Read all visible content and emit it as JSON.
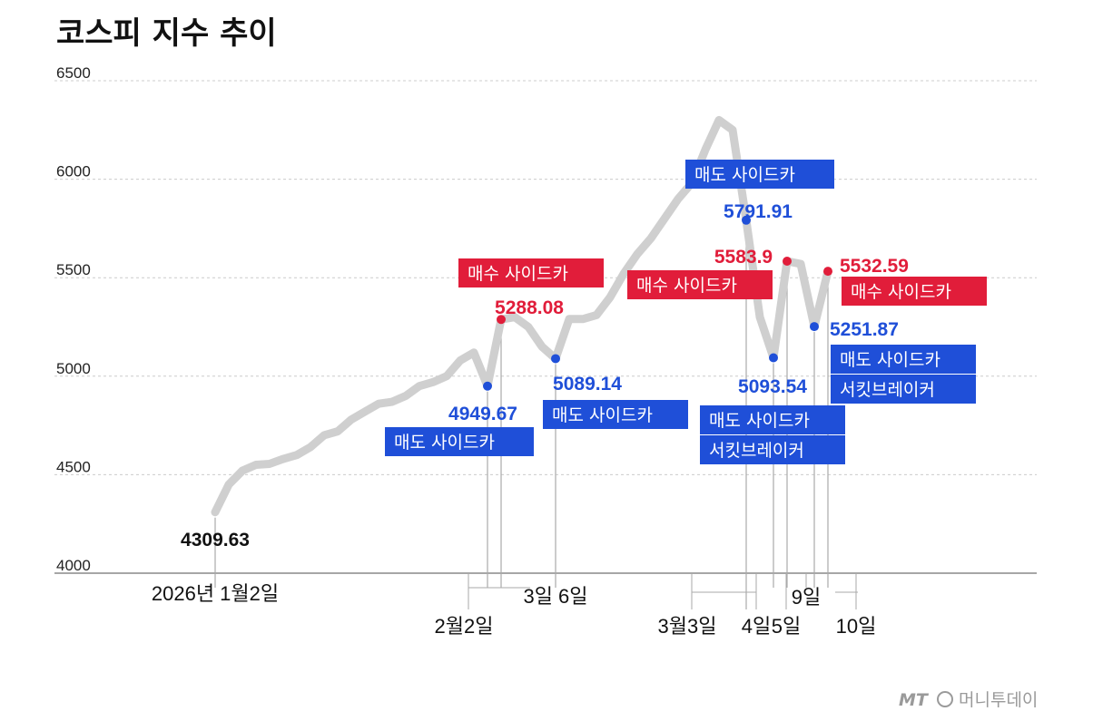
{
  "title": "코스피 지수 추이",
  "watermark": "머니투데이",
  "watermark_logo": "MT",
  "colors": {
    "line": "#cfcfcf",
    "sell": "#1f4fd8",
    "buy": "#e11d3a",
    "grid": "#cccccc",
    "axis": "#888888",
    "guide": "#aaaaaa"
  },
  "chart_data": {
    "type": "line",
    "title": "코스피 지수 추이",
    "xlabel": "",
    "ylabel": "",
    "ylim": [
      4000,
      6500
    ],
    "yticks": [
      4000,
      4500,
      5000,
      5500,
      6000,
      6500
    ],
    "xlim": [
      0,
      68
    ],
    "grid": true,
    "x_labels": [
      {
        "text": "2026년 1월2일",
        "x": 0
      },
      {
        "text": "2월2일",
        "x": 20
      },
      {
        "text": "3일 6일",
        "x": 25
      },
      {
        "text": "3월3일",
        "x": 39
      },
      {
        "text": "4일",
        "x": 41
      },
      {
        "text": "5일",
        "x": 42
      },
      {
        "text": "9일",
        "x": 44
      },
      {
        "text": "10일",
        "x": 45
      }
    ],
    "series": [
      {
        "values": [
          [
            0,
            4309.63
          ],
          [
            1,
            4450
          ],
          [
            2,
            4520
          ],
          [
            3,
            4550
          ],
          [
            4,
            4555
          ],
          [
            5,
            4580
          ],
          [
            6,
            4600
          ],
          [
            7,
            4640
          ],
          [
            8,
            4700
          ],
          [
            9,
            4720
          ],
          [
            10,
            4780
          ],
          [
            11,
            4820
          ],
          [
            12,
            4860
          ],
          [
            13,
            4870
          ],
          [
            14,
            4900
          ],
          [
            15,
            4950
          ],
          [
            16,
            4970
          ],
          [
            17,
            5000
          ],
          [
            18,
            5080
          ],
          [
            19,
            5120
          ],
          [
            20,
            4949.67
          ],
          [
            21,
            5288.08
          ],
          [
            22,
            5300
          ],
          [
            23,
            5250
          ],
          [
            24,
            5150
          ],
          [
            25,
            5089.14
          ],
          [
            26,
            5290
          ],
          [
            27,
            5290
          ],
          [
            28,
            5310
          ],
          [
            29,
            5400
          ],
          [
            30,
            5520
          ],
          [
            31,
            5620
          ],
          [
            32,
            5700
          ],
          [
            33,
            5800
          ],
          [
            34,
            5900
          ],
          [
            35,
            5980
          ],
          [
            36,
            6150
          ],
          [
            37,
            6300
          ],
          [
            38,
            6250
          ],
          [
            39,
            5791.91
          ],
          [
            40,
            5300
          ],
          [
            41,
            5093.54
          ],
          [
            42,
            5583.9
          ],
          [
            43,
            5570
          ],
          [
            44,
            5251.87
          ],
          [
            45,
            5532.59
          ]
        ]
      }
    ],
    "markers": [
      {
        "x": 0,
        "y": 4309.63,
        "value_label": "4309.63",
        "color": "black",
        "tags": []
      },
      {
        "x": 20,
        "y": 4949.67,
        "value_label": "4949.67",
        "color": "sell",
        "tags": [
          "매도 사이드카"
        ]
      },
      {
        "x": 21,
        "y": 5288.08,
        "value_label": "5288.08",
        "color": "buy",
        "tags": [
          "매수 사이드카"
        ]
      },
      {
        "x": 25,
        "y": 5089.14,
        "value_label": "5089.14",
        "color": "sell",
        "tags": [
          "매도 사이드카"
        ]
      },
      {
        "x": 39,
        "y": 5791.91,
        "value_label": "5791.91",
        "color": "sell",
        "tags": [
          "매도 사이드카"
        ]
      },
      {
        "x": 41,
        "y": 5093.54,
        "value_label": "5093.54",
        "color": "sell",
        "tags": [
          "매도 사이드카",
          "서킷브레이커"
        ]
      },
      {
        "x": 42,
        "y": 5583.9,
        "value_label": "5583.9",
        "color": "buy",
        "tags": [
          "매수 사이드카"
        ]
      },
      {
        "x": 44,
        "y": 5251.87,
        "value_label": "5251.87",
        "color": "sell",
        "tags": [
          "매도 사이드카",
          "서킷브레이커"
        ]
      },
      {
        "x": 45,
        "y": 5532.59,
        "value_label": "5532.59",
        "color": "buy",
        "tags": [
          "매수 사이드카"
        ]
      }
    ]
  }
}
